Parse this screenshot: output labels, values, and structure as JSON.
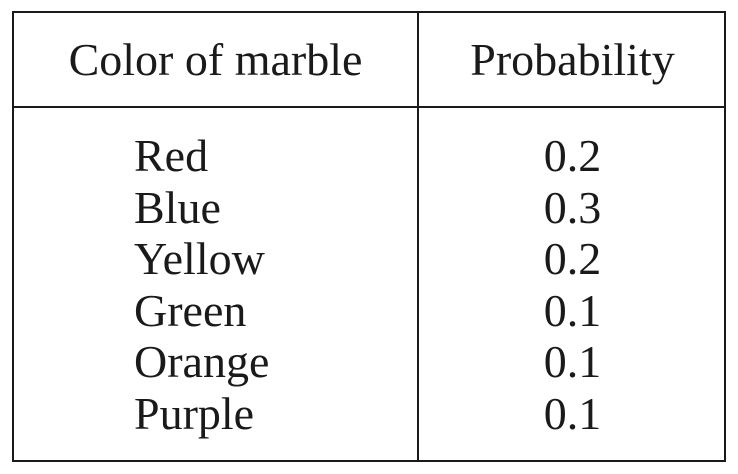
{
  "table": {
    "headers": {
      "color": "Color of marble",
      "probability": "Probability"
    },
    "rows": [
      {
        "color": "Red",
        "probability": "0.2"
      },
      {
        "color": "Blue",
        "probability": "0.3"
      },
      {
        "color": "Yellow",
        "probability": "0.2"
      },
      {
        "color": "Green",
        "probability": "0.1"
      },
      {
        "color": "Orange",
        "probability": "0.1"
      },
      {
        "color": "Purple",
        "probability": "0.1"
      }
    ]
  }
}
